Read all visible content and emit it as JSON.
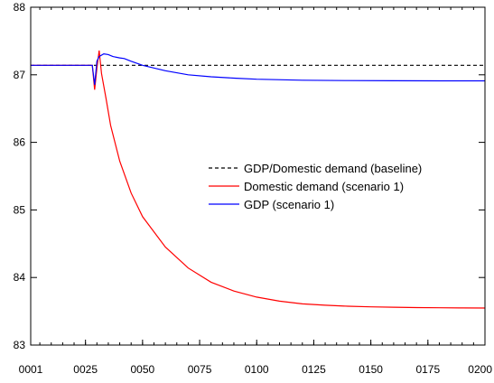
{
  "chart_data": {
    "type": "line",
    "title": "",
    "xlabel": "",
    "ylabel": "",
    "xlim": [
      1,
      200
    ],
    "ylim": [
      83,
      88
    ],
    "x_ticks": [
      "0001",
      "0025",
      "0050",
      "0075",
      "0100",
      "0125",
      "0150",
      "0175",
      "0200"
    ],
    "x_tick_values": [
      1,
      25,
      50,
      75,
      100,
      125,
      150,
      175,
      200
    ],
    "y_ticks": [
      "83",
      "84",
      "85",
      "86",
      "87",
      "88"
    ],
    "y_tick_values": [
      83,
      84,
      85,
      86,
      87,
      88
    ],
    "grid": false,
    "legend_position": "center-right",
    "series": [
      {
        "name": "GDP/Domestic demand (baseline)",
        "color": "#000000",
        "dash": "dashed",
        "x": [
          1,
          200
        ],
        "y": [
          87.14,
          87.14
        ]
      },
      {
        "name": "Domestic demand (scenario 1)",
        "color": "#ff0000",
        "dash": "solid",
        "x": [
          1,
          28,
          29,
          30,
          31,
          32,
          34,
          36,
          40,
          45,
          50,
          60,
          70,
          80,
          90,
          100,
          110,
          120,
          130,
          140,
          150,
          160,
          170,
          180,
          190,
          200
        ],
        "y": [
          87.14,
          87.14,
          86.78,
          87.1,
          87.36,
          87.02,
          86.65,
          86.25,
          85.72,
          85.25,
          84.9,
          84.45,
          84.14,
          83.93,
          83.8,
          83.71,
          83.65,
          83.61,
          83.59,
          83.575,
          83.565,
          83.56,
          83.555,
          83.552,
          83.55,
          83.548
        ]
      },
      {
        "name": "GDP (scenario 1)",
        "color": "#0000ff",
        "dash": "solid",
        "x": [
          1,
          28,
          29,
          30,
          31,
          33,
          35,
          37,
          40,
          42,
          45,
          50,
          60,
          70,
          80,
          90,
          100,
          120,
          140,
          160,
          180,
          200
        ],
        "y": [
          87.14,
          87.14,
          86.85,
          87.2,
          87.27,
          87.31,
          87.3,
          87.27,
          87.25,
          87.24,
          87.2,
          87.14,
          87.06,
          87.0,
          86.97,
          86.95,
          86.935,
          86.92,
          86.915,
          86.912,
          86.91,
          86.91
        ]
      }
    ]
  }
}
